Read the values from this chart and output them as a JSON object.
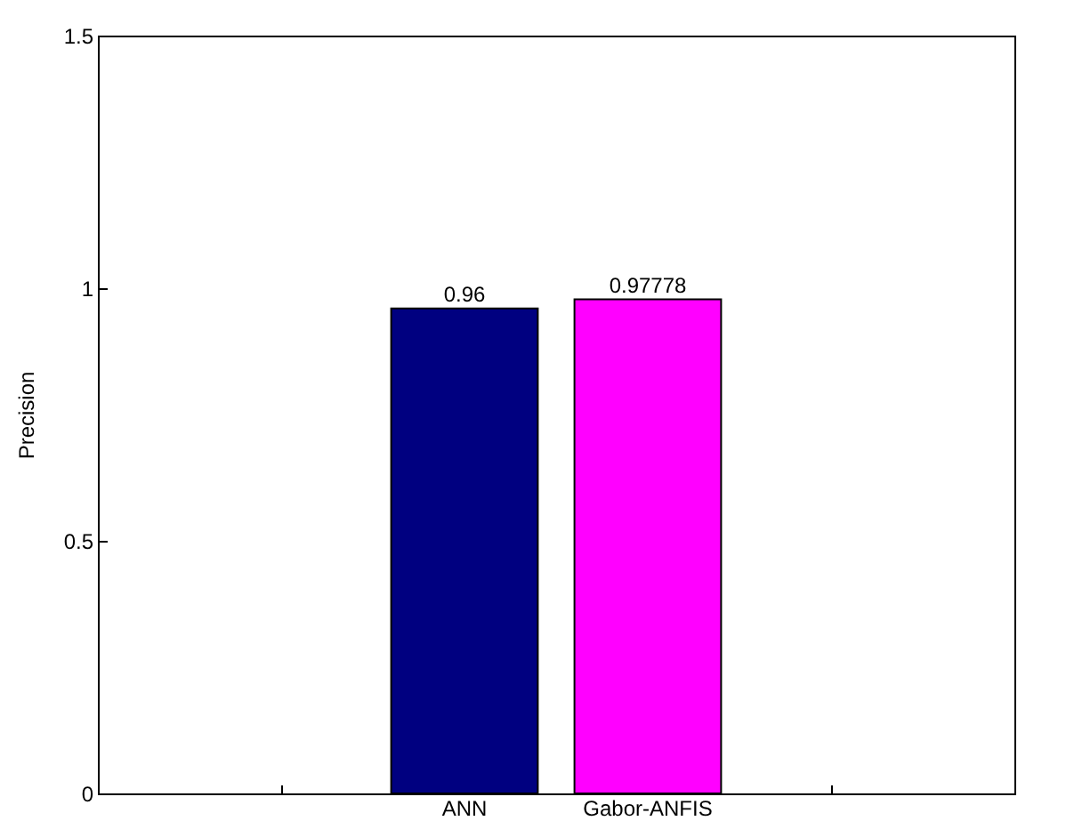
{
  "chart_data": {
    "type": "bar",
    "ylabel": "Precision",
    "categories": [
      null,
      "ANN",
      "Gabor-ANFIS",
      null
    ],
    "values": [
      null,
      0.96,
      0.97778,
      null
    ],
    "colors": [
      null,
      "#000080",
      "#ff00ff",
      null
    ],
    "ylim": [
      0,
      1.5
    ],
    "yticks": [
      0,
      0.5,
      1,
      1.5
    ],
    "data_labels": true
  }
}
